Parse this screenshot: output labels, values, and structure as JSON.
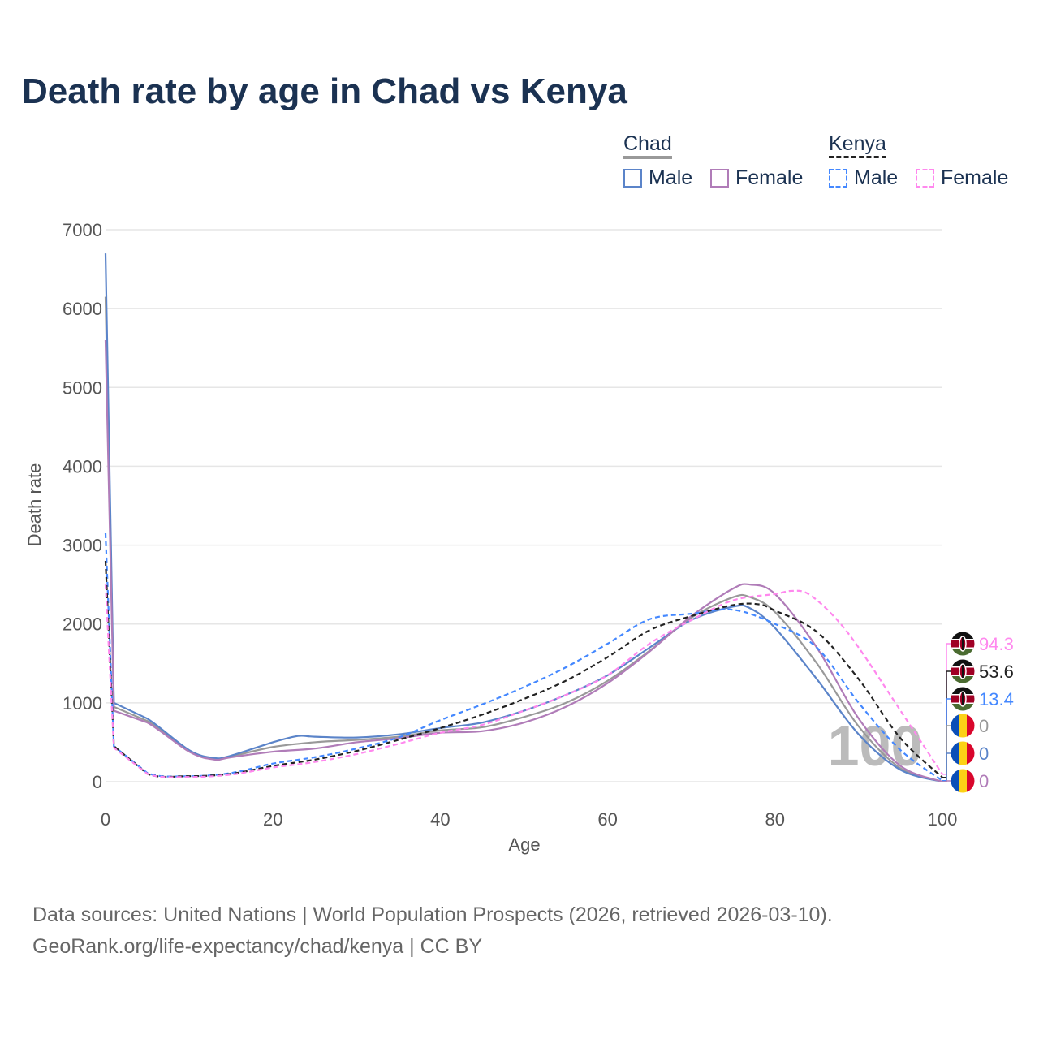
{
  "chart_data": {
    "type": "line",
    "title": "Death rate by age in Chad vs Kenya",
    "xlabel": "Age",
    "ylabel": "Death rate",
    "xlim": [
      0,
      100
    ],
    "ylim": [
      0,
      7000
    ],
    "xticks": [
      0,
      20,
      40,
      60,
      80,
      100
    ],
    "yticks": [
      0,
      1000,
      2000,
      3000,
      4000,
      5000,
      6000,
      7000
    ],
    "watermark": "100",
    "legend": {
      "groups": [
        {
          "name": "Chad",
          "items": [
            "Male",
            "Female"
          ]
        },
        {
          "name": "Kenya",
          "items": [
            "Male",
            "Female"
          ]
        }
      ],
      "placement": "top-right"
    },
    "series": [
      {
        "name": "Chad Total",
        "color": "#999999",
        "dash": false,
        "end_label": "0",
        "flag": "chad",
        "x": [
          0,
          1,
          5,
          10,
          13,
          15,
          20,
          25,
          30,
          35,
          40,
          45,
          50,
          55,
          60,
          65,
          70,
          75,
          77,
          80,
          85,
          90,
          95,
          100
        ],
        "y": [
          6150,
          950,
          770,
          390,
          290,
          320,
          440,
          500,
          530,
          570,
          650,
          690,
          820,
          1000,
          1280,
          1660,
          2080,
          2340,
          2340,
          2150,
          1500,
          700,
          170,
          0
        ]
      },
      {
        "name": "Chad Male",
        "color": "#5b84c9",
        "dash": false,
        "end_label": "0",
        "flag": "chad",
        "x": [
          0,
          1,
          5,
          10,
          13,
          15,
          20,
          23,
          25,
          30,
          35,
          40,
          45,
          50,
          55,
          60,
          65,
          70,
          75,
          77,
          80,
          85,
          90,
          95,
          100
        ],
        "y": [
          6700,
          1000,
          800,
          400,
          300,
          330,
          500,
          580,
          570,
          560,
          600,
          680,
          750,
          900,
          1100,
          1350,
          1700,
          2050,
          2220,
          2200,
          1950,
          1300,
          600,
          150,
          0
        ]
      },
      {
        "name": "Chad Female",
        "color": "#b07cb8",
        "dash": false,
        "end_label": "0",
        "flag": "chad",
        "x": [
          0,
          1,
          5,
          10,
          13,
          15,
          20,
          25,
          30,
          35,
          40,
          45,
          50,
          55,
          60,
          65,
          70,
          75,
          77,
          80,
          85,
          90,
          95,
          100
        ],
        "y": [
          5600,
          900,
          750,
          380,
          280,
          310,
          380,
          420,
          500,
          550,
          620,
          640,
          750,
          950,
          1250,
          1650,
          2100,
          2450,
          2500,
          2380,
          1700,
          800,
          200,
          0
        ]
      },
      {
        "name": "Kenya Male",
        "color": "#4488ff",
        "dash": true,
        "end_label": "13.4",
        "flag": "kenya",
        "x": [
          0,
          1,
          5,
          10,
          15,
          20,
          25,
          30,
          35,
          40,
          45,
          50,
          55,
          60,
          65,
          70,
          75,
          80,
          85,
          90,
          95,
          100
        ],
        "y": [
          3150,
          450,
          110,
          70,
          110,
          230,
          310,
          420,
          560,
          780,
          980,
          1200,
          1450,
          1750,
          2060,
          2130,
          2180,
          2000,
          1700,
          1000,
          400,
          13.4
        ]
      },
      {
        "name": "Kenya Total",
        "color": "#222222",
        "dash": true,
        "end_label": "53.6",
        "flag": "kenya",
        "x": [
          0,
          1,
          5,
          10,
          15,
          20,
          25,
          30,
          35,
          40,
          45,
          50,
          55,
          60,
          65,
          70,
          75,
          78,
          80,
          85,
          90,
          95,
          100
        ],
        "y": [
          2800,
          450,
          100,
          70,
          100,
          200,
          280,
          390,
          530,
          680,
          850,
          1050,
          1280,
          1580,
          1920,
          2100,
          2240,
          2250,
          2170,
          1900,
          1300,
          550,
          53.6
        ]
      },
      {
        "name": "Kenya Female",
        "color": "#ff88ee",
        "dash": true,
        "end_label": "94.3",
        "flag": "kenya",
        "x": [
          0,
          1,
          5,
          10,
          15,
          20,
          25,
          30,
          35,
          40,
          45,
          50,
          55,
          60,
          65,
          70,
          75,
          80,
          82,
          84,
          87,
          90,
          95,
          100
        ],
        "y": [
          2500,
          430,
          100,
          60,
          90,
          180,
          250,
          350,
          480,
          620,
          720,
          900,
          1100,
          1350,
          1750,
          2050,
          2300,
          2380,
          2420,
          2380,
          2100,
          1700,
          900,
          94.3
        ]
      }
    ]
  },
  "footer": {
    "line1": "Data sources: United Nations | World Population Prospects (2026, retrieved 2026-03-10).",
    "line2": "GeoRank.org/life-expectancy/chad/kenya | CC BY"
  }
}
